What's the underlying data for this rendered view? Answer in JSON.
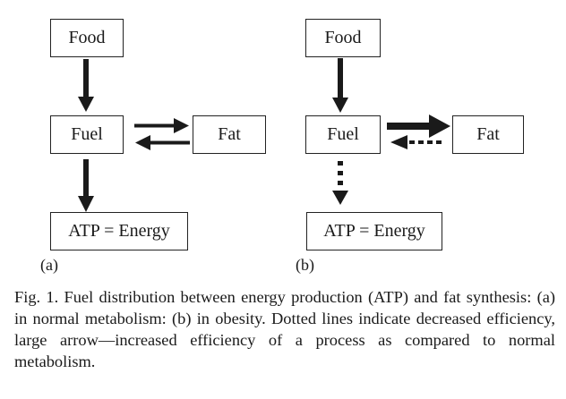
{
  "panel_a": {
    "label": "(a)",
    "nodes": {
      "food": "Food",
      "fuel": "Fuel",
      "fat": "Fat",
      "atp": "ATP = Energy"
    },
    "edges": [
      {
        "from": "Food",
        "to": "Fuel",
        "style": "solid"
      },
      {
        "from": "Fuel",
        "to": "Fat",
        "style": "solid"
      },
      {
        "from": "Fat",
        "to": "Fuel",
        "style": "solid"
      },
      {
        "from": "Fuel",
        "to": "ATP = Energy",
        "style": "solid"
      }
    ]
  },
  "panel_b": {
    "label": "(b)",
    "nodes": {
      "food": "Food",
      "fuel": "Fuel",
      "fat": "Fat",
      "atp": "ATP = Energy"
    },
    "edges": [
      {
        "from": "Food",
        "to": "Fuel",
        "style": "solid"
      },
      {
        "from": "Fuel",
        "to": "Fat",
        "style": "large"
      },
      {
        "from": "Fat",
        "to": "Fuel",
        "style": "dotted"
      },
      {
        "from": "Fuel",
        "to": "ATP = Energy",
        "style": "dotted"
      }
    ]
  },
  "caption": "Fig. 1. Fuel distribution between energy production (ATP) and fat synthesis: (a) in normal metabolism: (b) in obesity. Dotted lines indicate decreased efficiency, large arrow—increased efficiency of a process as compared to normal metabolism."
}
